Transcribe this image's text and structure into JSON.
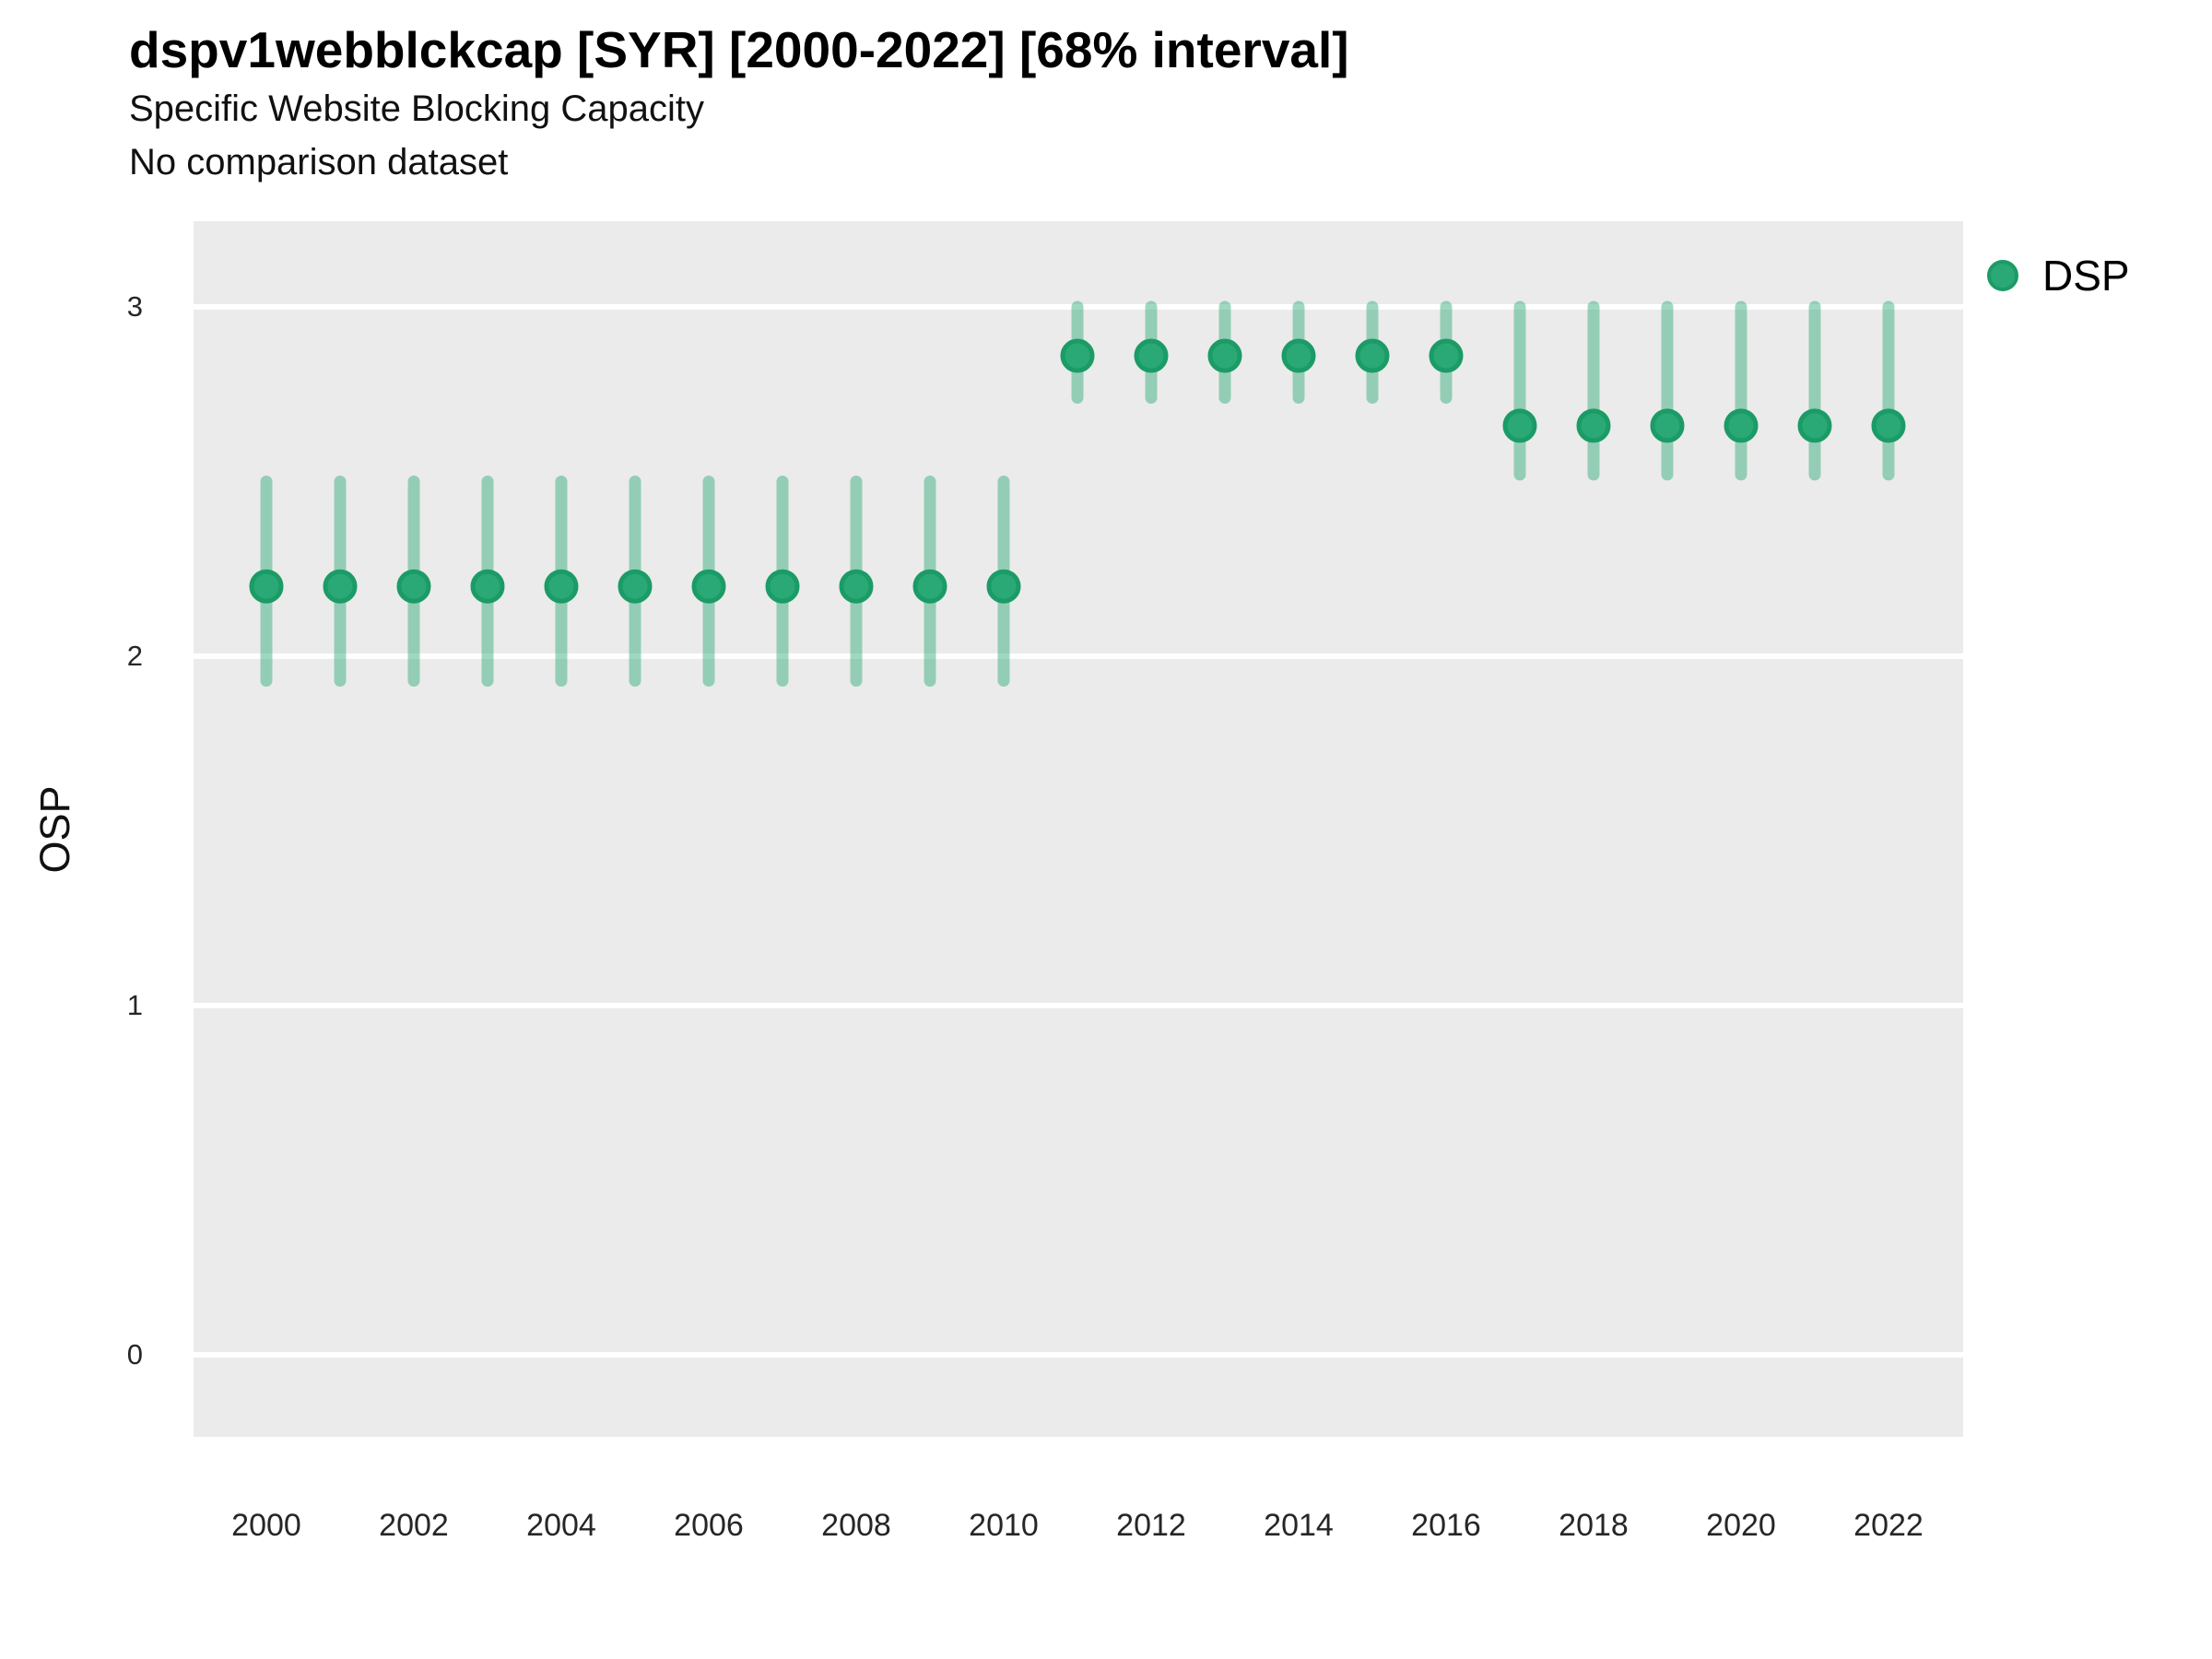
{
  "header": {
    "title": "dspv1webblckcap [SYR] [2000-2022] [68% interval]",
    "subtitle": "Specific Website Blocking Capacity",
    "note": "No comparison dataset"
  },
  "axes": {
    "y_label": "OSP",
    "y_ticks": [
      0,
      1,
      2,
      3
    ],
    "x_ticks": [
      2000,
      2002,
      2004,
      2006,
      2008,
      2010,
      2012,
      2014,
      2016,
      2018,
      2020,
      2022
    ]
  },
  "legend": {
    "position": "right",
    "items": [
      {
        "label": "DSP",
        "marker": "circle-icon"
      }
    ]
  },
  "colors": {
    "point_fill": "#2aa876",
    "point_stroke": "#1b9b66",
    "interval_bar": "#2aa876",
    "interval_bar_opacity": 0.45,
    "panel_background": "#ebebeb",
    "gridline": "#ffffff",
    "title_text": "#000000",
    "tick_text": "#262626"
  },
  "chart_data": {
    "type": "scatter",
    "title": "dspv1webblckcap [SYR] [2000-2022] [68% interval]",
    "subtitle": "Specific Website Blocking Capacity",
    "note": "No comparison dataset",
    "xlabel": "",
    "ylabel": "OSP",
    "ylim": [
      -0.25,
      3.25
    ],
    "xlim": [
      1999,
      2023
    ],
    "y_ticks": [
      0,
      1,
      2,
      3
    ],
    "x_ticks": [
      2000,
      2002,
      2004,
      2006,
      2008,
      2010,
      2012,
      2014,
      2016,
      2018,
      2020,
      2022
    ],
    "grid": "major horizontal white lines on gray panel",
    "legend_position": "right",
    "interval_level": "68%",
    "series": [
      {
        "name": "DSP",
        "x": [
          2000,
          2001,
          2002,
          2003,
          2004,
          2005,
          2006,
          2007,
          2008,
          2009,
          2010,
          2011,
          2012,
          2013,
          2014,
          2015,
          2016,
          2017,
          2018,
          2019,
          2020,
          2021,
          2022
        ],
        "estimate": [
          2.2,
          2.2,
          2.2,
          2.2,
          2.2,
          2.2,
          2.2,
          2.2,
          2.2,
          2.2,
          2.2,
          2.86,
          2.86,
          2.86,
          2.86,
          2.86,
          2.86,
          2.66,
          2.66,
          2.66,
          2.66,
          2.66,
          2.66
        ],
        "lower_68": [
          1.93,
          1.93,
          1.93,
          1.93,
          1.93,
          1.93,
          1.93,
          1.93,
          1.93,
          1.93,
          1.93,
          2.74,
          2.74,
          2.74,
          2.74,
          2.74,
          2.74,
          2.52,
          2.52,
          2.52,
          2.52,
          2.52,
          2.52
        ],
        "upper_68": [
          2.5,
          2.5,
          2.5,
          2.5,
          2.5,
          2.5,
          2.5,
          2.5,
          2.5,
          2.5,
          2.5,
          3.0,
          3.0,
          3.0,
          3.0,
          3.0,
          3.0,
          3.0,
          3.0,
          3.0,
          3.0,
          3.0,
          3.0
        ]
      }
    ]
  }
}
